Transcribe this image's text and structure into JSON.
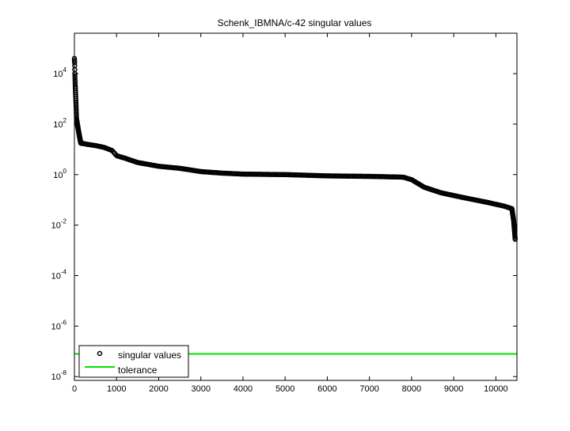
{
  "chart_data": {
    "type": "scatter",
    "title": "Schenk_IBMNA/c-42 singular values",
    "xlabel": "",
    "ylabel": "",
    "xlim": [
      0,
      10500
    ],
    "ylim_log10": [
      -8.15,
      5.6
    ],
    "yscale": "log",
    "grid": false,
    "legend_position": "bottom-left",
    "x_ticks": [
      "0",
      "1000",
      "2000",
      "3000",
      "4000",
      "5000",
      "6000",
      "7000",
      "8000",
      "9000",
      "10000"
    ],
    "x_tick_values": [
      0,
      1000,
      2000,
      3000,
      4000,
      5000,
      6000,
      7000,
      8000,
      9000,
      10000
    ],
    "y_tick_exponents": [
      "4",
      "2",
      "0",
      "-2",
      "-4",
      "-6",
      "-8"
    ],
    "y_tick_base": "10",
    "series": [
      {
        "name": "singular values",
        "marker": "circle",
        "color": "#000000",
        "approx_points_index_log10": [
          [
            0,
            4.6
          ],
          [
            5,
            4.4
          ],
          [
            10,
            4.0
          ],
          [
            20,
            3.5
          ],
          [
            35,
            2.9
          ],
          [
            50,
            2.2
          ],
          [
            100,
            1.7
          ],
          [
            150,
            1.25
          ],
          [
            300,
            1.2
          ],
          [
            500,
            1.15
          ],
          [
            700,
            1.08
          ],
          [
            900,
            0.95
          ],
          [
            1000,
            0.75
          ],
          [
            1200,
            0.65
          ],
          [
            1500,
            0.48
          ],
          [
            2000,
            0.33
          ],
          [
            2500,
            0.25
          ],
          [
            3000,
            0.12
          ],
          [
            3500,
            0.06
          ],
          [
            4000,
            0.02
          ],
          [
            5000,
            0.0
          ],
          [
            6000,
            -0.05
          ],
          [
            7000,
            -0.07
          ],
          [
            7800,
            -0.1
          ],
          [
            8000,
            -0.2
          ],
          [
            8300,
            -0.5
          ],
          [
            8700,
            -0.72
          ],
          [
            9200,
            -0.9
          ],
          [
            9800,
            -1.1
          ],
          [
            10200,
            -1.25
          ],
          [
            10380,
            -1.35
          ],
          [
            10420,
            -1.8
          ],
          [
            10460,
            -2.6
          ]
        ]
      },
      {
        "name": "tolerance",
        "marker": "line",
        "color": "#00e000",
        "log10_value": -7.1
      }
    ]
  }
}
